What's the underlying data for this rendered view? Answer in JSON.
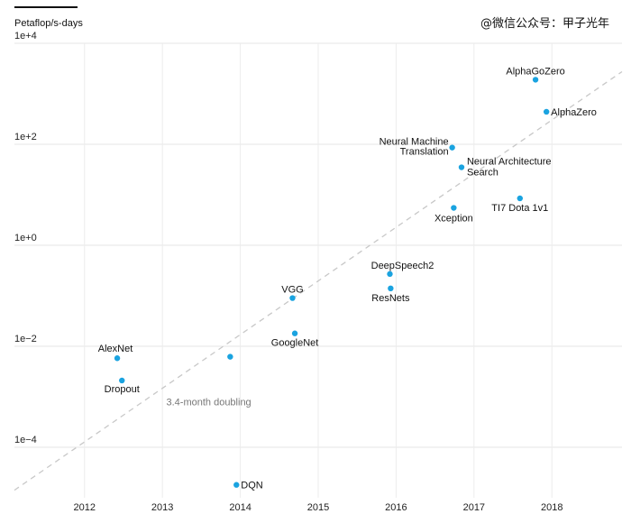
{
  "chart_data": {
    "type": "scatter",
    "ylabel": "Petaflop/s-days",
    "yscale": "log",
    "ylim": [
      1e-05,
      10000.0
    ],
    "xlim": [
      2011.1,
      2018.9
    ],
    "x_ticks": [
      "2012",
      "2013",
      "2014",
      "2015",
      "2016",
      "2017",
      "2018"
    ],
    "y_ticks": [
      "1e+4",
      "1e+2",
      "1e+0",
      "1e−2",
      "1e−4"
    ],
    "grid": true,
    "point_color": "#1aa3e0",
    "trend_color": "#c8c8c8",
    "trend_label": "3.4-month doubling",
    "points": [
      {
        "label": "AlexNet",
        "x": 2012.42,
        "y": 0.0058
      },
      {
        "label": "Dropout",
        "x": 2012.48,
        "y": 0.0021
      },
      {
        "label": "",
        "x": 2013.87,
        "y": 0.0062
      },
      {
        "label": "DQN",
        "x": 2013.95,
        "y": 1.8e-05
      },
      {
        "label": "VGG",
        "x": 2014.67,
        "y": 0.09
      },
      {
        "label": "GoogleNet",
        "x": 2014.7,
        "y": 0.018
      },
      {
        "label": "DeepSpeech2",
        "x": 2015.92,
        "y": 0.27
      },
      {
        "label": "ResNets",
        "x": 2015.93,
        "y": 0.14
      },
      {
        "label": "Neural Machine Translation",
        "x": 2016.72,
        "y": 86
      },
      {
        "label": "Neural Architecture Search",
        "x": 2016.84,
        "y": 35
      },
      {
        "label": "Xception",
        "x": 2016.74,
        "y": 5.5
      },
      {
        "label": "TI7 Dota 1v1",
        "x": 2017.59,
        "y": 8.5
      },
      {
        "label": "AlphaGoZero",
        "x": 2017.79,
        "y": 1900
      },
      {
        "label": "AlphaZero",
        "x": 2017.93,
        "y": 440
      }
    ]
  },
  "watermark": "@微信公众号：甲子光年"
}
